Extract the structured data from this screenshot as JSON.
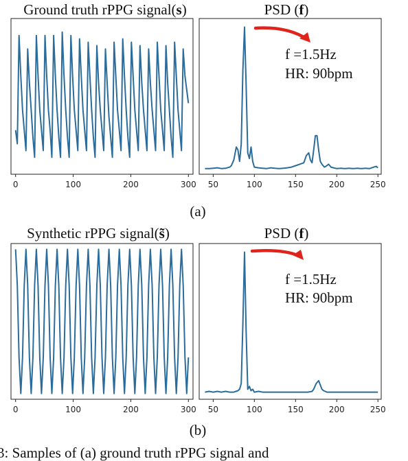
{
  "chart_data": [
    {
      "type": "line",
      "title": "Ground truth rPPG signal(s)",
      "title_parts": [
        "Ground truth rPPG signal(",
        "s",
        ")"
      ],
      "x": [
        0,
        3,
        6,
        9,
        12,
        15,
        18,
        21,
        24,
        27,
        30,
        33,
        36,
        39,
        42,
        45,
        48,
        51,
        54,
        57,
        60,
        63,
        66,
        69,
        72,
        75,
        78,
        81,
        84,
        87,
        90,
        93,
        96,
        99,
        102,
        105,
        108,
        111,
        114,
        117,
        120,
        123,
        126,
        129,
        132,
        135,
        138,
        141,
        144,
        147,
        150,
        153,
        156,
        159,
        162,
        165,
        168,
        171,
        174,
        177,
        180,
        183,
        186,
        189,
        192,
        195,
        198,
        201,
        204,
        207,
        210,
        213,
        216,
        219,
        222,
        225,
        228,
        231,
        234,
        237,
        240,
        243,
        246,
        249,
        252,
        255,
        258,
        261,
        264,
        267,
        270,
        273,
        276,
        279,
        282,
        285,
        288,
        291,
        294,
        297,
        300
      ],
      "series": [
        {
          "color": "#2a6c9b",
          "values": [
            -0.5,
            -0.7,
            0.9,
            0.3,
            -0.2,
            -0.5,
            -0.8,
            0.7,
            0.2,
            -0.2,
            -0.6,
            -0.9,
            0.9,
            0.3,
            -0.2,
            -0.5,
            -0.8,
            0.9,
            0.3,
            -0.2,
            -0.5,
            -0.9,
            0.9,
            0.3,
            -0.2,
            -0.6,
            -0.9,
            0.95,
            0.3,
            -0.2,
            -0.6,
            -0.9,
            0.9,
            0.3,
            -0.2,
            -0.5,
            -0.8,
            0.85,
            0.3,
            -0.2,
            -0.5,
            -0.8,
            0.8,
            0.3,
            -0.2,
            -0.6,
            -0.9,
            0.75,
            0.2,
            -0.2,
            -0.5,
            -0.8,
            0.7,
            0.2,
            -0.3,
            -0.6,
            -0.9,
            0.8,
            0.3,
            -0.2,
            -0.5,
            -0.8,
            0.85,
            0.3,
            -0.2,
            -0.6,
            -0.9,
            0.8,
            0.3,
            -0.2,
            -0.5,
            -0.8,
            0.75,
            0.2,
            -0.2,
            -0.5,
            -0.8,
            0.7,
            0.2,
            -0.2,
            -0.5,
            -0.8,
            0.8,
            0.3,
            -0.2,
            -0.5,
            -0.8,
            0.75,
            0.2,
            -0.2,
            -0.6,
            -0.9,
            0.8,
            0.3,
            -0.2,
            -0.5,
            -0.8,
            0.7,
            0.3,
            0.1,
            -0.1
          ]
        }
      ],
      "xticks": [
        0,
        100,
        200,
        300
      ],
      "xlim": [
        -8,
        308
      ],
      "ylim": [
        -1.15,
        1.15
      ]
    },
    {
      "type": "line",
      "title": "PSD (f)",
      "title_parts": [
        "PSD (",
        "f",
        ")"
      ],
      "x": [
        40,
        45,
        50,
        55,
        60,
        65,
        70,
        72,
        75,
        78,
        80,
        82,
        84,
        86,
        88,
        90,
        92,
        94,
        96,
        98,
        100,
        105,
        110,
        115,
        120,
        125,
        130,
        135,
        140,
        145,
        150,
        155,
        160,
        163,
        166,
        168,
        170,
        172,
        174,
        176,
        178,
        180,
        182,
        185,
        188,
        190,
        193,
        196,
        200,
        205,
        210,
        215,
        220,
        225,
        230,
        235,
        240,
        245,
        248,
        250
      ],
      "series": [
        {
          "color": "#2a6c9b",
          "values": [
            0.01,
            0.01,
            0.012,
            0.015,
            0.01,
            0.012,
            0.02,
            0.03,
            0.07,
            0.16,
            0.14,
            0.06,
            0.18,
            0.7,
            1.0,
            0.6,
            0.12,
            0.08,
            0.16,
            0.06,
            0.02,
            0.015,
            0.012,
            0.01,
            0.015,
            0.012,
            0.01,
            0.012,
            0.015,
            0.02,
            0.03,
            0.04,
            0.05,
            0.1,
            0.12,
            0.07,
            0.05,
            0.14,
            0.24,
            0.24,
            0.14,
            0.06,
            0.04,
            0.02,
            0.03,
            0.04,
            0.02,
            0.015,
            0.01,
            0.012,
            0.01,
            0.012,
            0.01,
            0.012,
            0.01,
            0.012,
            0.01,
            0.02,
            0.025,
            0.015
          ]
        }
      ],
      "xticks": [
        50,
        100,
        150,
        200,
        250
      ],
      "xlim": [
        33,
        254
      ],
      "ylim": [
        -0.03,
        1.06
      ],
      "annotations": [
        "f =1.5Hz",
        "HR: 90bpm"
      ]
    },
    {
      "type": "line",
      "title": "Synthetic rPPG signal(s̃)",
      "title_parts": [
        "Synthetic rPPG signal(",
        "s̃",
        ")"
      ],
      "x": [
        0,
        3,
        6,
        9,
        12,
        15,
        18,
        21,
        24,
        27,
        30,
        33,
        36,
        39,
        42,
        45,
        48,
        51,
        54,
        57,
        60,
        63,
        66,
        69,
        72,
        75,
        78,
        81,
        84,
        87,
        90,
        93,
        96,
        99,
        102,
        105,
        108,
        111,
        114,
        117,
        120,
        123,
        126,
        129,
        132,
        135,
        138,
        141,
        144,
        147,
        150,
        153,
        156,
        159,
        162,
        165,
        168,
        171,
        174,
        177,
        180,
        183,
        186,
        189,
        192,
        195,
        198,
        201,
        204,
        207,
        210,
        213,
        216,
        219,
        222,
        225,
        228,
        231,
        234,
        237,
        240,
        243,
        246,
        249,
        252,
        255,
        258,
        261,
        264,
        267,
        270,
        273,
        276,
        279,
        282,
        285,
        288,
        291,
        294,
        297,
        300
      ],
      "series": [
        {
          "color": "#2a6c9b",
          "values": [
            1,
            0.5,
            -0.5,
            -1,
            -0.5,
            0.5,
            1,
            0.5,
            -0.5,
            -1,
            -0.5,
            0.5,
            1,
            0.5,
            -0.5,
            -1,
            -0.5,
            0.5,
            1,
            0.5,
            -0.5,
            -1,
            -0.5,
            0.5,
            1,
            0.5,
            -0.5,
            -1,
            -0.5,
            0.5,
            1,
            0.5,
            -0.5,
            -1,
            -0.5,
            0.5,
            1,
            0.5,
            -0.5,
            -1,
            -0.5,
            0.5,
            1,
            0.5,
            -0.5,
            -1,
            -0.5,
            0.5,
            1,
            0.5,
            -0.5,
            -1,
            -0.5,
            0.5,
            1,
            0.5,
            -0.5,
            -1,
            -0.5,
            0.5,
            1,
            0.5,
            -0.5,
            -1,
            -0.5,
            0.5,
            1,
            0.5,
            -0.5,
            -1,
            -0.5,
            0.5,
            1,
            0.5,
            -0.5,
            -1,
            -0.5,
            0.5,
            1,
            0.5,
            -0.5,
            -1,
            -0.5,
            0.5,
            1,
            0.5,
            -0.5,
            -1,
            -0.5,
            0.5,
            1,
            0.5,
            -0.5,
            -1,
            -0.5,
            0.5,
            1,
            0.5,
            -0.5,
            -1,
            -0.5
          ]
        }
      ],
      "xticks": [
        0,
        100,
        200,
        300
      ],
      "xlim": [
        -8,
        308
      ],
      "ylim": [
        -1.08,
        1.08
      ]
    },
    {
      "type": "line",
      "title": "PSD (f)",
      "title_parts": [
        "PSD (",
        "f",
        ")"
      ],
      "x": [
        40,
        45,
        50,
        55,
        60,
        65,
        70,
        75,
        80,
        82,
        84,
        86,
        88,
        90,
        92,
        94,
        96,
        98,
        100,
        105,
        110,
        120,
        130,
        140,
        150,
        160,
        165,
        170,
        172,
        175,
        178,
        180,
        182,
        184,
        186,
        188,
        190,
        195,
        200,
        210,
        220,
        230,
        240,
        250
      ],
      "series": [
        {
          "color": "#2a6c9b",
          "values": [
            0.02,
            0.025,
            0.02,
            0.025,
            0.02,
            0.025,
            0.02,
            0.02,
            0.03,
            0.04,
            0.08,
            0.5,
            1.0,
            0.45,
            0.04,
            0.06,
            0.03,
            0.04,
            0.02,
            0.025,
            0.02,
            0.02,
            0.02,
            0.02,
            0.02,
            0.02,
            0.02,
            0.025,
            0.04,
            0.08,
            0.1,
            0.07,
            0.04,
            0.03,
            0.025,
            0.02,
            0.02,
            0.02,
            0.02,
            0.02,
            0.02,
            0.02,
            0.02,
            0.02
          ]
        }
      ],
      "xticks": [
        50,
        100,
        150,
        200,
        250
      ],
      "xlim": [
        33,
        254
      ],
      "ylim": [
        -0.03,
        1.06
      ],
      "annotations": [
        "f =1.5Hz",
        "HR: 90bpm"
      ]
    }
  ],
  "sublabels": [
    "(a)",
    "(b)"
  ],
  "caption": "3: Samples of (a) ground truth rPPG signal and",
  "colors": {
    "trace": "#2a6c9b",
    "arrow": "#e0231b"
  }
}
